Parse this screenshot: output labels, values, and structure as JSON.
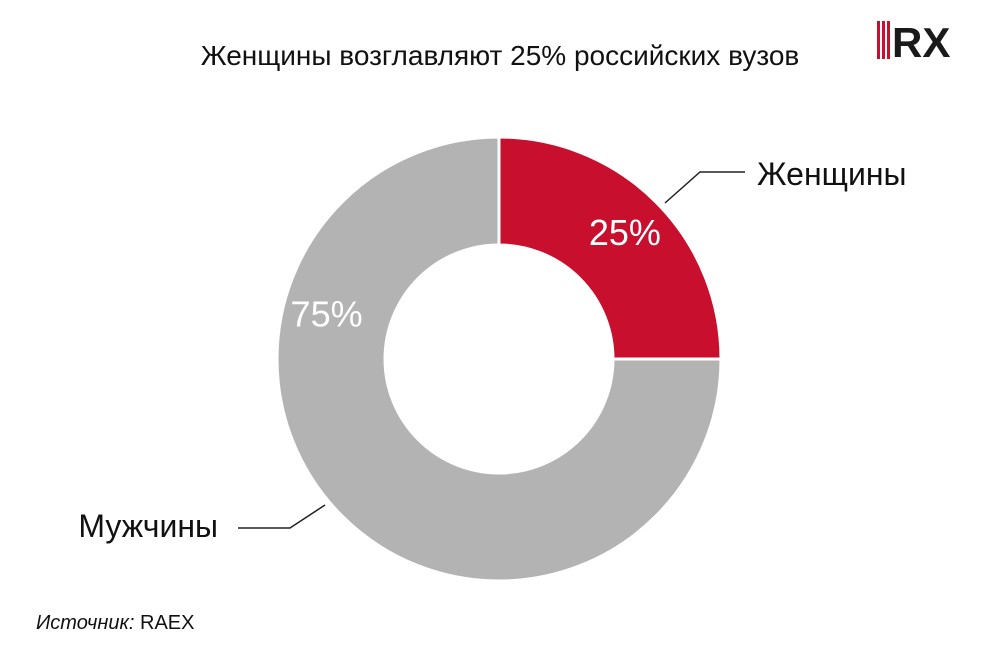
{
  "title": "Женщины возглавляют 25% российских вузов",
  "logo_text": "RX",
  "source": {
    "label": "Источник:",
    "value": "RAEX"
  },
  "colors": {
    "women": "#c8102e",
    "men": "#b3b3b3",
    "logo_red": "#c8102e",
    "logo_dark": "#1a1a1a"
  },
  "chart_data": {
    "type": "pie",
    "style": "donut",
    "title": "Женщины возглавляют 25% российских вузов",
    "slices": [
      {
        "label": "Женщины",
        "value": 25,
        "value_label": "25%",
        "color": "#c8102e"
      },
      {
        "label": "Мужчины",
        "value": 75,
        "value_label": "75%",
        "color": "#b3b3b3"
      }
    ]
  }
}
